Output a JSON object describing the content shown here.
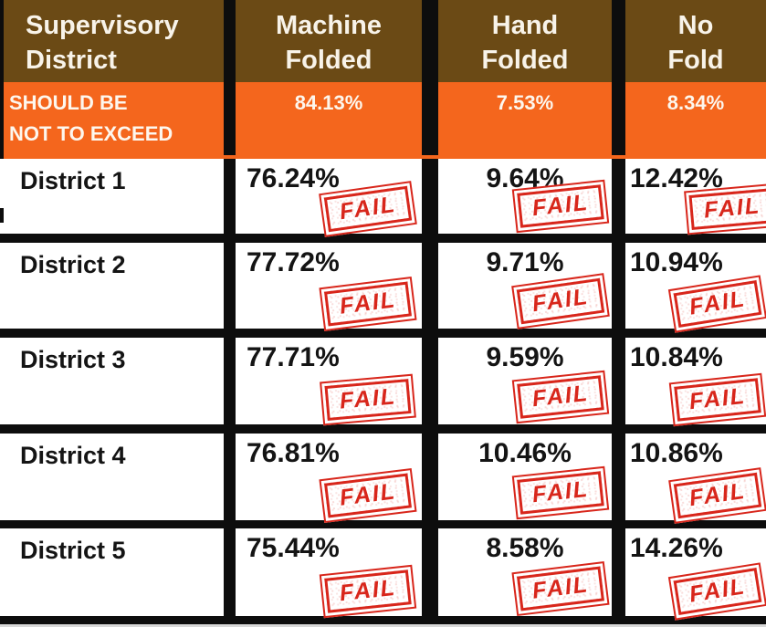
{
  "colors": {
    "header_brown": "#6b4a15",
    "threshold_orange": "#f4661d",
    "fail_red": "#d8261b",
    "divider_black": "#0d0d0d"
  },
  "headers": [
    {
      "line1": "Supervisory",
      "line2": "District"
    },
    {
      "line1": "Machine",
      "line2": "Folded"
    },
    {
      "line1": "Hand",
      "line2": "Folded"
    },
    {
      "line1": "No",
      "line2": "Fold"
    }
  ],
  "threshold": {
    "line1": "SHOULD BE",
    "line2": "NOT TO EXCEED",
    "machine_folded": "84.13%",
    "hand_folded": "7.53%",
    "no_fold": "8.34%"
  },
  "rows": [
    {
      "district": "District 1",
      "machine_folded": "76.24%",
      "hand_folded": "9.64%",
      "no_fold": "12.42%"
    },
    {
      "district": "District 2",
      "machine_folded": "77.72%",
      "hand_folded": "9.71%",
      "no_fold": "10.94%"
    },
    {
      "district": "District 3",
      "machine_folded": "77.71%",
      "hand_folded": "9.59%",
      "no_fold": "10.84%"
    },
    {
      "district": "District 4",
      "machine_folded": "76.81%",
      "hand_folded": "10.46%",
      "no_fold": "10.86%"
    },
    {
      "district": "District 5",
      "machine_folded": "75.44%",
      "hand_folded": "8.58%",
      "no_fold": "14.26%"
    }
  ],
  "stamp": {
    "fail": "FAIL"
  },
  "chart_data": {
    "type": "table",
    "columns": [
      "Supervisory District",
      "Machine Folded",
      "Hand Folded",
      "No Fold"
    ],
    "threshold_row": {
      "label": "SHOULD BE NOT TO EXCEED",
      "machine_folded_pct": 84.13,
      "hand_folded_pct": 7.53,
      "no_fold_pct": 8.34
    },
    "rows": [
      {
        "district": "District 1",
        "machine_folded_pct": 76.24,
        "hand_folded_pct": 9.64,
        "no_fold_pct": 12.42,
        "status": "FAIL"
      },
      {
        "district": "District 2",
        "machine_folded_pct": 77.72,
        "hand_folded_pct": 9.71,
        "no_fold_pct": 10.94,
        "status": "FAIL"
      },
      {
        "district": "District 3",
        "machine_folded_pct": 77.71,
        "hand_folded_pct": 9.59,
        "no_fold_pct": 10.84,
        "status": "FAIL"
      },
      {
        "district": "District 4",
        "machine_folded_pct": 76.81,
        "hand_folded_pct": 10.46,
        "no_fold_pct": 10.86,
        "status": "FAIL"
      },
      {
        "district": "District 5",
        "machine_folded_pct": 75.44,
        "hand_folded_pct": 8.58,
        "no_fold_pct": 14.26,
        "status": "FAIL"
      }
    ]
  }
}
